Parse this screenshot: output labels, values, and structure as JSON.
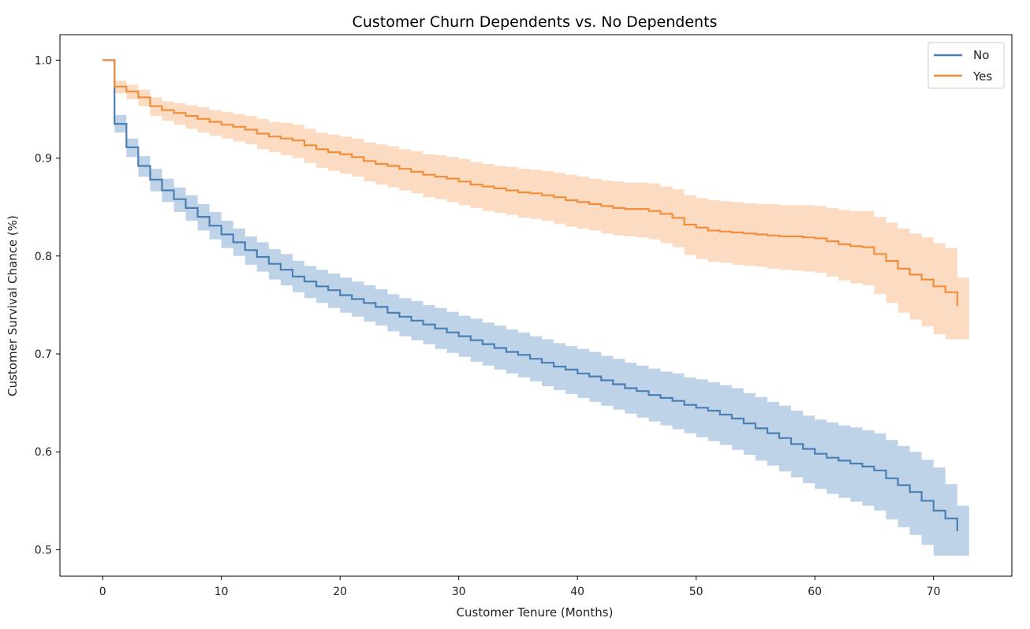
{
  "chart_data": {
    "type": "line",
    "step": true,
    "title": "Customer Churn Dependents vs. No Dependents",
    "xlabel": "Customer Tenure (Months)",
    "ylabel": "Customer Survival Chance (%)",
    "xlim": [
      -3.6,
      76.6
    ],
    "ylim": [
      0.473,
      1.026
    ],
    "xticks": [
      0,
      10,
      20,
      30,
      40,
      50,
      60,
      70
    ],
    "yticks": [
      0.5,
      0.6,
      0.7,
      0.8,
      0.9,
      1.0
    ],
    "ytick_labels": [
      "0.5",
      "0.6",
      "0.7",
      "0.8",
      "0.9",
      "1.0"
    ],
    "grid": false,
    "legend": "top-right",
    "confidence_band": true,
    "series": [
      {
        "name": "No",
        "color": "#4a7fb4",
        "band_color": "#a9c4e0",
        "x": [
          0,
          1,
          2,
          3,
          4,
          5,
          6,
          7,
          8,
          9,
          10,
          11,
          12,
          13,
          14,
          15,
          16,
          17,
          18,
          19,
          20,
          21,
          22,
          23,
          24,
          25,
          26,
          27,
          28,
          29,
          30,
          31,
          32,
          33,
          34,
          35,
          36,
          37,
          38,
          39,
          40,
          41,
          42,
          43,
          44,
          45,
          46,
          47,
          48,
          49,
          50,
          51,
          52,
          53,
          54,
          55,
          56,
          57,
          58,
          59,
          60,
          61,
          62,
          63,
          64,
          65,
          66,
          67,
          68,
          69,
          70,
          71,
          72
        ],
        "y": [
          1.0,
          0.935,
          0.911,
          0.892,
          0.878,
          0.867,
          0.858,
          0.849,
          0.84,
          0.831,
          0.822,
          0.814,
          0.806,
          0.799,
          0.792,
          0.786,
          0.779,
          0.774,
          0.769,
          0.765,
          0.76,
          0.756,
          0.752,
          0.748,
          0.742,
          0.738,
          0.734,
          0.73,
          0.726,
          0.722,
          0.718,
          0.714,
          0.71,
          0.706,
          0.702,
          0.699,
          0.695,
          0.691,
          0.687,
          0.684,
          0.68,
          0.677,
          0.673,
          0.669,
          0.665,
          0.662,
          0.658,
          0.655,
          0.652,
          0.648,
          0.645,
          0.642,
          0.638,
          0.634,
          0.629,
          0.624,
          0.619,
          0.614,
          0.608,
          0.603,
          0.598,
          0.594,
          0.591,
          0.588,
          0.585,
          0.581,
          0.573,
          0.566,
          0.559,
          0.55,
          0.54,
          0.532,
          0.519
        ],
        "lower": [
          1.0,
          0.926,
          0.901,
          0.881,
          0.866,
          0.855,
          0.845,
          0.836,
          0.826,
          0.817,
          0.808,
          0.8,
          0.791,
          0.784,
          0.776,
          0.77,
          0.763,
          0.757,
          0.752,
          0.747,
          0.742,
          0.738,
          0.733,
          0.729,
          0.723,
          0.718,
          0.714,
          0.71,
          0.705,
          0.701,
          0.697,
          0.692,
          0.688,
          0.684,
          0.68,
          0.676,
          0.672,
          0.667,
          0.663,
          0.659,
          0.655,
          0.651,
          0.647,
          0.643,
          0.639,
          0.635,
          0.631,
          0.627,
          0.623,
          0.619,
          0.615,
          0.611,
          0.607,
          0.602,
          0.597,
          0.591,
          0.586,
          0.58,
          0.574,
          0.568,
          0.562,
          0.557,
          0.553,
          0.549,
          0.545,
          0.54,
          0.531,
          0.523,
          0.515,
          0.505,
          0.494,
          0.494,
          0.494
        ],
        "upper": [
          1.0,
          0.944,
          0.92,
          0.902,
          0.889,
          0.879,
          0.87,
          0.862,
          0.853,
          0.845,
          0.836,
          0.828,
          0.82,
          0.814,
          0.807,
          0.802,
          0.795,
          0.79,
          0.786,
          0.782,
          0.778,
          0.774,
          0.77,
          0.766,
          0.761,
          0.757,
          0.754,
          0.75,
          0.747,
          0.743,
          0.739,
          0.736,
          0.732,
          0.729,
          0.725,
          0.722,
          0.718,
          0.715,
          0.711,
          0.708,
          0.705,
          0.702,
          0.698,
          0.695,
          0.691,
          0.688,
          0.685,
          0.682,
          0.68,
          0.676,
          0.674,
          0.671,
          0.668,
          0.665,
          0.66,
          0.656,
          0.651,
          0.647,
          0.642,
          0.637,
          0.633,
          0.63,
          0.627,
          0.625,
          0.622,
          0.619,
          0.612,
          0.606,
          0.6,
          0.592,
          0.584,
          0.567,
          0.545
        ]
      },
      {
        "name": "Yes",
        "color": "#f28e3b",
        "band_color": "#f9d0ad",
        "x": [
          0,
          1,
          2,
          3,
          4,
          5,
          6,
          7,
          8,
          9,
          10,
          11,
          12,
          13,
          14,
          15,
          16,
          17,
          18,
          19,
          20,
          21,
          22,
          23,
          24,
          25,
          26,
          27,
          28,
          29,
          30,
          31,
          32,
          33,
          34,
          35,
          36,
          37,
          38,
          39,
          40,
          41,
          42,
          43,
          44,
          45,
          46,
          47,
          48,
          49,
          50,
          51,
          52,
          53,
          54,
          55,
          56,
          57,
          58,
          59,
          60,
          61,
          62,
          63,
          64,
          65,
          66,
          67,
          68,
          69,
          70,
          71,
          72
        ],
        "y": [
          1.0,
          0.973,
          0.968,
          0.962,
          0.953,
          0.949,
          0.946,
          0.943,
          0.94,
          0.937,
          0.934,
          0.932,
          0.929,
          0.925,
          0.922,
          0.92,
          0.918,
          0.913,
          0.909,
          0.906,
          0.904,
          0.901,
          0.897,
          0.894,
          0.892,
          0.889,
          0.886,
          0.883,
          0.881,
          0.879,
          0.876,
          0.873,
          0.871,
          0.869,
          0.867,
          0.865,
          0.864,
          0.862,
          0.86,
          0.857,
          0.855,
          0.853,
          0.851,
          0.849,
          0.848,
          0.848,
          0.846,
          0.843,
          0.839,
          0.832,
          0.829,
          0.826,
          0.825,
          0.824,
          0.823,
          0.822,
          0.821,
          0.82,
          0.82,
          0.819,
          0.818,
          0.815,
          0.812,
          0.81,
          0.809,
          0.802,
          0.795,
          0.787,
          0.781,
          0.776,
          0.769,
          0.763,
          0.749
        ],
        "lower": [
          1.0,
          0.966,
          0.96,
          0.953,
          0.943,
          0.938,
          0.934,
          0.93,
          0.926,
          0.923,
          0.92,
          0.917,
          0.914,
          0.909,
          0.906,
          0.903,
          0.9,
          0.895,
          0.89,
          0.887,
          0.884,
          0.881,
          0.876,
          0.873,
          0.87,
          0.867,
          0.864,
          0.86,
          0.858,
          0.855,
          0.852,
          0.849,
          0.846,
          0.844,
          0.842,
          0.839,
          0.838,
          0.836,
          0.833,
          0.83,
          0.828,
          0.826,
          0.823,
          0.821,
          0.82,
          0.819,
          0.817,
          0.813,
          0.809,
          0.801,
          0.797,
          0.794,
          0.793,
          0.791,
          0.79,
          0.789,
          0.787,
          0.786,
          0.785,
          0.784,
          0.783,
          0.779,
          0.775,
          0.772,
          0.77,
          0.761,
          0.752,
          0.742,
          0.735,
          0.728,
          0.72,
          0.715,
          0.715
        ],
        "upper": [
          1.0,
          0.979,
          0.975,
          0.97,
          0.962,
          0.958,
          0.956,
          0.954,
          0.952,
          0.949,
          0.947,
          0.945,
          0.943,
          0.94,
          0.937,
          0.936,
          0.934,
          0.93,
          0.926,
          0.924,
          0.922,
          0.92,
          0.916,
          0.914,
          0.912,
          0.909,
          0.907,
          0.904,
          0.903,
          0.901,
          0.899,
          0.896,
          0.894,
          0.892,
          0.891,
          0.889,
          0.888,
          0.887,
          0.885,
          0.883,
          0.881,
          0.879,
          0.877,
          0.876,
          0.875,
          0.875,
          0.874,
          0.871,
          0.868,
          0.862,
          0.859,
          0.857,
          0.856,
          0.855,
          0.854,
          0.853,
          0.853,
          0.852,
          0.852,
          0.852,
          0.851,
          0.849,
          0.847,
          0.846,
          0.846,
          0.84,
          0.834,
          0.828,
          0.823,
          0.819,
          0.813,
          0.808,
          0.778
        ]
      }
    ]
  }
}
